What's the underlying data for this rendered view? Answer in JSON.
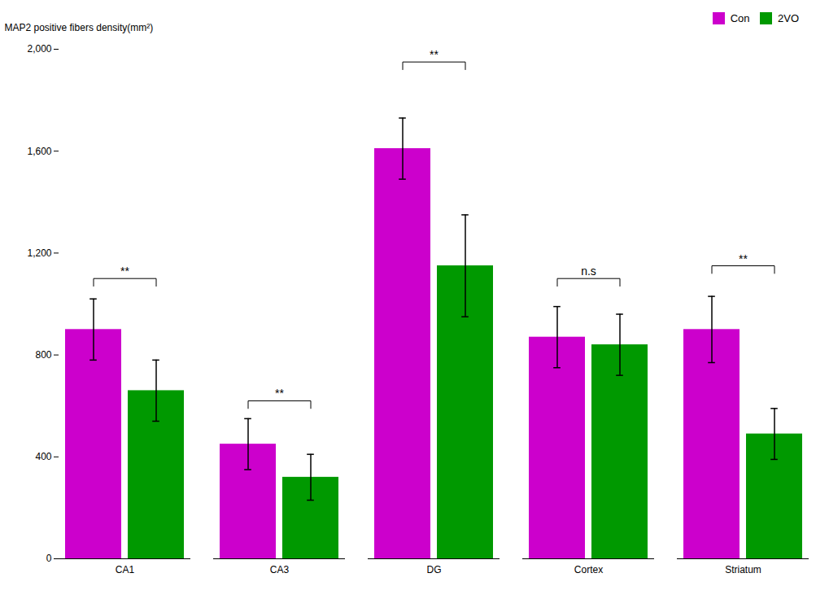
{
  "chart_data": {
    "type": "bar",
    "categories": [
      "CA1",
      "CA3",
      "DG",
      "Cortex",
      "Striatum"
    ],
    "series": [
      {
        "name": "Con",
        "color": "#CC00CC",
        "values": [
          900,
          450,
          1610,
          870,
          900
        ],
        "errors": [
          120,
          100,
          120,
          120,
          130
        ]
      },
      {
        "name": "2VO",
        "color": "#009900",
        "values": [
          660,
          320,
          1150,
          840,
          490
        ],
        "errors": [
          120,
          90,
          200,
          120,
          100
        ]
      }
    ],
    "ylabel": "MAP2 positive fibers density(mm²)",
    "ylim": [
      0,
      2000
    ],
    "yticks": [
      0,
      400,
      800,
      1200,
      1600,
      2000
    ],
    "legend": "upper right",
    "annotations": [
      {
        "category": "CA1",
        "text": "**",
        "y": 1100
      },
      {
        "category": "CA3",
        "text": "**",
        "y": 620
      },
      {
        "category": "DG",
        "text": "**",
        "y": 1950
      },
      {
        "category": "Cortex",
        "text": "n.s",
        "y": 1100
      },
      {
        "category": "Striatum",
        "text": "**",
        "y": 1150
      }
    ]
  }
}
